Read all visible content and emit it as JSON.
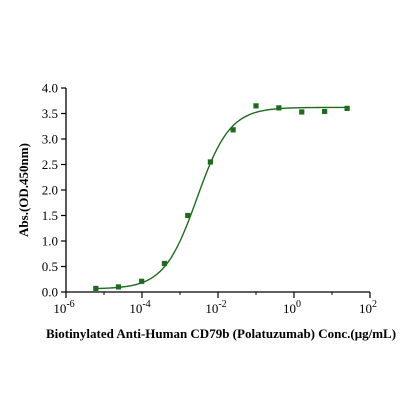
{
  "chart_data": {
    "type": "scatter",
    "title": "",
    "xlabel": "Biotinylated Anti-Human CD79b (Polatuzumab) Conc.(μg/mL)",
    "ylabel": "Abs.(OD.450nm)",
    "x_scale": "log",
    "xlim": [
      1e-06,
      100
    ],
    "ylim": [
      0.0,
      4.0
    ],
    "x_ticks": [
      1e-06,
      0.0001,
      0.01,
      1,
      100
    ],
    "x_tick_labels": [
      {
        "base": "10",
        "exp": "-6"
      },
      {
        "base": "10",
        "exp": "-4"
      },
      {
        "base": "10",
        "exp": "-2"
      },
      {
        "base": "10",
        "exp": "0"
      },
      {
        "base": "10",
        "exp": "2"
      }
    ],
    "y_ticks": [
      0.0,
      0.5,
      1.0,
      1.5,
      2.0,
      2.5,
      3.0,
      3.5,
      4.0
    ],
    "y_tick_labels": [
      "0.0",
      "0.5",
      "1.0",
      "1.5",
      "2.0",
      "2.5",
      "3.0",
      "3.5",
      "4.0"
    ],
    "grid": false,
    "legend": "none",
    "series": [
      {
        "points": [
          {
            "x": 6.1e-06,
            "y": 0.07
          },
          {
            "x": 2.4e-05,
            "y": 0.1
          },
          {
            "x": 9.8e-05,
            "y": 0.21
          },
          {
            "x": 0.00039,
            "y": 0.56
          },
          {
            "x": 0.0016,
            "y": 1.5
          },
          {
            "x": 0.0063,
            "y": 2.55
          },
          {
            "x": 0.025,
            "y": 3.18
          },
          {
            "x": 0.1,
            "y": 3.65
          },
          {
            "x": 0.4,
            "y": 3.61
          },
          {
            "x": 1.6,
            "y": 3.53
          },
          {
            "x": 6.4,
            "y": 3.54
          },
          {
            "x": 25,
            "y": 3.6
          }
        ],
        "fit": {
          "model": "4PL",
          "bottom": 0.06,
          "top": 3.62,
          "ec50": 0.0028,
          "hill": 1.0
        }
      }
    ],
    "colors": {
      "marker": "#1e6b1e",
      "curve": "#1e6b1e",
      "axis": "#000000"
    }
  }
}
